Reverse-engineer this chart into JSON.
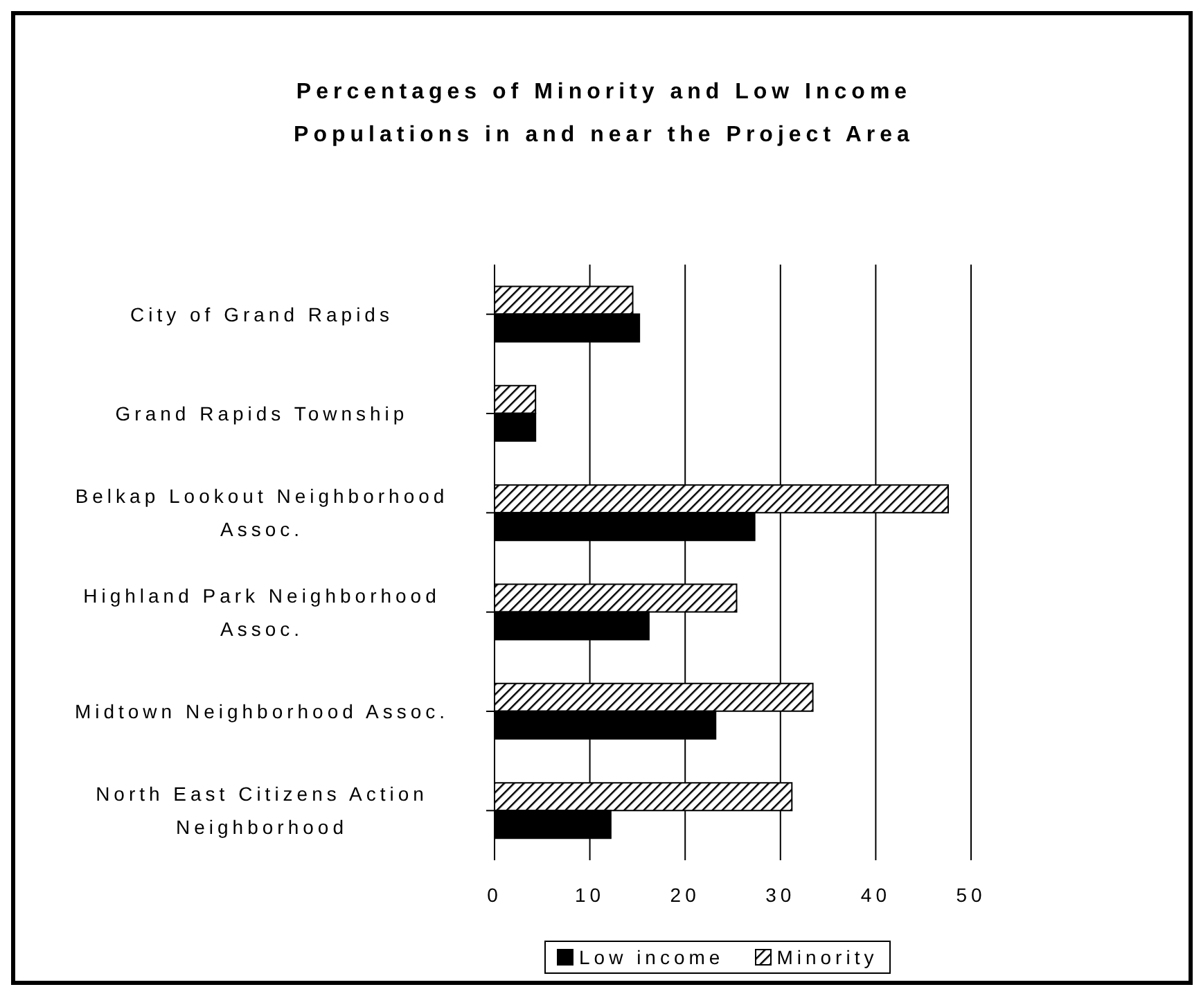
{
  "chart_data": {
    "type": "bar",
    "orientation": "horizontal",
    "title": "Percentages of Minority and Low Income Populations in and near the Project Area",
    "categories": [
      "City of Grand Rapids",
      "Grand Rapids Township",
      "Belkap Lookout Neighborhood Assoc.",
      "Highland Park Neighborhood Assoc.",
      "Midtown Neighborhood Assoc.",
      "North East Citizens Action Neighborhood"
    ],
    "series": [
      {
        "name": "Low income",
        "color": "#000000",
        "values": [
          15.2,
          4.3,
          27.3,
          16.2,
          23.2,
          12.2
        ]
      },
      {
        "name": "Minority",
        "color": "#000000",
        "values": [
          14.5,
          4.3,
          47.6,
          25.4,
          33.4,
          31.2
        ]
      }
    ],
    "xlim": [
      0,
      50
    ],
    "xticks": [
      0,
      10,
      20,
      30,
      40,
      50
    ],
    "grid": "x",
    "legend": "bottom"
  }
}
